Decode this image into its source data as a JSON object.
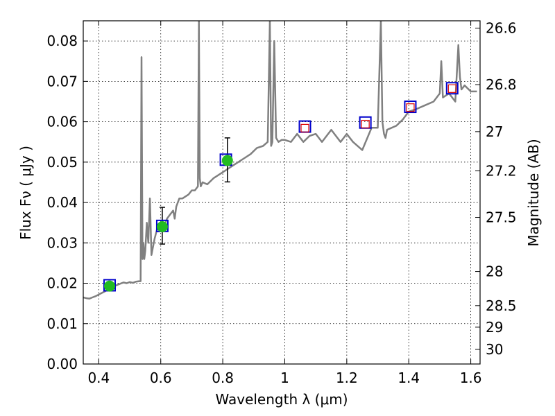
{
  "chart_data": {
    "type": "line",
    "title": "",
    "xlabel": "Wavelength  λ (μm)",
    "ylabel": "Flux  Fν  ( μJy )",
    "ylabel_right": "Magnitude (AB)",
    "xlim": [
      0.35,
      1.63
    ],
    "ylim": [
      0.0,
      0.085
    ],
    "grid": true,
    "x_ticks": [
      0.4,
      0.6,
      0.8,
      1.0,
      1.2,
      1.4,
      1.6
    ],
    "x_tick_labels": [
      "0.4",
      "0.6",
      "0.8",
      "1",
      "1.2",
      "1.4",
      "1.6"
    ],
    "y_ticks": [
      0.0,
      0.01,
      0.02,
      0.03,
      0.04,
      0.05,
      0.06,
      0.07,
      0.08
    ],
    "y_tick_labels": [
      "0.00",
      "0.01",
      "0.02",
      "0.03",
      "0.04",
      "0.05",
      "0.06",
      "0.07",
      "0.08"
    ],
    "right_ticks": [
      26.6,
      26.8,
      27.0,
      27.2,
      27.5,
      28.0,
      28.5,
      29.0,
      30.0
    ],
    "right_tick_labels": [
      "26.6",
      "26.8",
      "27",
      "27.2",
      "27.5",
      "28",
      "28.5",
      "29",
      "30"
    ],
    "colors": {
      "spectrum": "#808080",
      "model_box": "#0000cc",
      "observed_point": "#22bb22",
      "synthetic_box": "#dd0000",
      "errorbar": "#000000",
      "grid": "#000000"
    },
    "series": [
      {
        "name": "model spectrum",
        "kind": "line",
        "x": [
          0.35,
          0.36,
          0.37,
          0.38,
          0.39,
          0.4,
          0.41,
          0.42,
          0.43,
          0.44,
          0.45,
          0.46,
          0.47,
          0.48,
          0.49,
          0.5,
          0.51,
          0.52,
          0.53,
          0.535,
          0.538,
          0.541,
          0.544,
          0.547,
          0.55,
          0.555,
          0.56,
          0.565,
          0.57,
          0.58,
          0.59,
          0.6,
          0.61,
          0.62,
          0.63,
          0.64,
          0.645,
          0.65,
          0.66,
          0.67,
          0.68,
          0.69,
          0.7,
          0.71,
          0.72,
          0.723,
          0.726,
          0.729,
          0.735,
          0.75,
          0.77,
          0.79,
          0.81,
          0.83,
          0.85,
          0.87,
          0.89,
          0.91,
          0.93,
          0.945,
          0.952,
          0.956,
          0.96,
          0.966,
          0.972,
          0.976,
          0.98,
          0.99,
          1.0,
          1.02,
          1.04,
          1.06,
          1.08,
          1.1,
          1.12,
          1.15,
          1.18,
          1.2,
          1.22,
          1.25,
          1.28,
          1.3,
          1.31,
          1.315,
          1.32,
          1.325,
          1.33,
          1.36,
          1.38,
          1.4,
          1.42,
          1.45,
          1.48,
          1.5,
          1.505,
          1.51,
          1.53,
          1.55,
          1.56,
          1.565,
          1.57,
          1.58,
          1.6,
          1.62
        ],
        "values": [
          0.0165,
          0.0163,
          0.0162,
          0.0165,
          0.0168,
          0.0172,
          0.0176,
          0.018,
          0.0185,
          0.019,
          0.0193,
          0.0196,
          0.0199,
          0.0202,
          0.02,
          0.0203,
          0.0201,
          0.0204,
          0.0205,
          0.0205,
          0.076,
          0.026,
          0.03,
          0.026,
          0.028,
          0.035,
          0.03,
          0.041,
          0.027,
          0.031,
          0.034,
          0.033,
          0.034,
          0.036,
          0.037,
          0.038,
          0.036,
          0.039,
          0.041,
          0.041,
          0.0415,
          0.042,
          0.043,
          0.043,
          0.044,
          0.085,
          0.046,
          0.044,
          0.045,
          0.0445,
          0.046,
          0.047,
          0.048,
          0.049,
          0.05,
          0.051,
          0.052,
          0.0535,
          0.054,
          0.055,
          0.085,
          0.054,
          0.055,
          0.08,
          0.056,
          0.0555,
          0.055,
          0.0555,
          0.0555,
          0.055,
          0.057,
          0.055,
          0.0565,
          0.057,
          0.055,
          0.058,
          0.055,
          0.057,
          0.055,
          0.053,
          0.0585,
          0.0585,
          0.085,
          0.06,
          0.057,
          0.056,
          0.058,
          0.059,
          0.0605,
          0.0625,
          0.063,
          0.064,
          0.065,
          0.067,
          0.075,
          0.066,
          0.067,
          0.065,
          0.079,
          0.071,
          0.068,
          0.069,
          0.0675,
          0.0675
        ]
      },
      {
        "name": "model photometry",
        "kind": "open-square",
        "x": [
          0.435,
          0.605,
          0.81,
          1.065,
          1.26,
          1.405,
          1.54
        ],
        "values": [
          0.0195,
          0.0342,
          0.0506,
          0.0588,
          0.0598,
          0.0637,
          0.0683
        ]
      },
      {
        "name": "observed photometry",
        "kind": "filled-circle",
        "x": [
          0.435,
          0.605,
          0.815
        ],
        "values": [
          0.0193,
          0.034,
          0.0504
        ],
        "err_low": [
          0.0193,
          0.0297,
          0.0451
        ],
        "err_high": [
          0.0193,
          0.0388,
          0.056
        ]
      },
      {
        "name": "upper limits",
        "kind": "small-open-square",
        "x": [
          1.065,
          1.26,
          1.405,
          1.54
        ],
        "values": [
          0.0584,
          0.0594,
          0.0635,
          0.0682
        ]
      }
    ]
  }
}
